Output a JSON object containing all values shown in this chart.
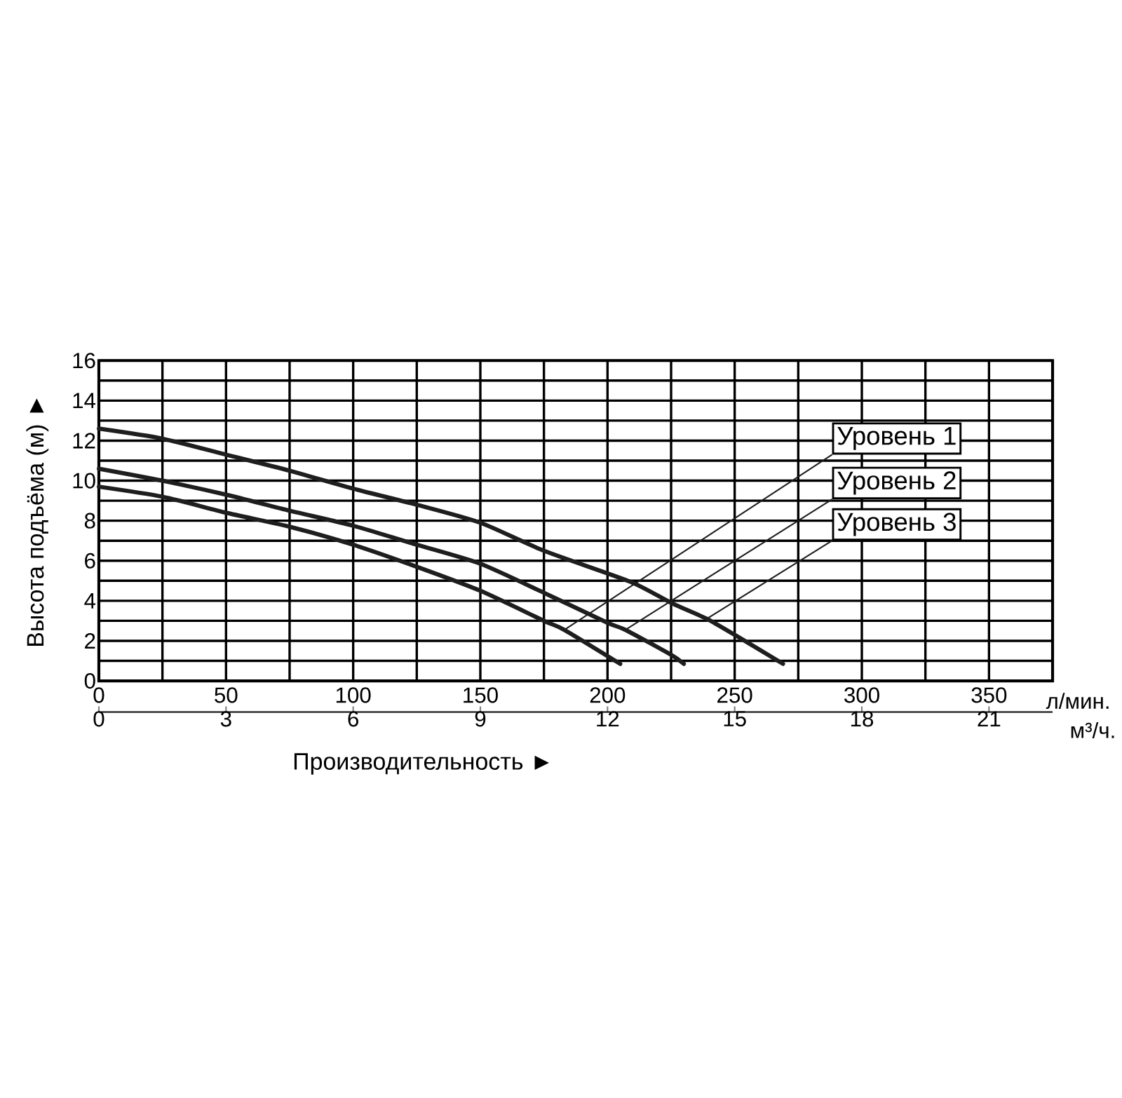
{
  "chart_data": {
    "type": "line",
    "xlabel": "Производительность ►",
    "ylabel": "Высота подъёма (м) ►",
    "xlim": [
      0,
      375
    ],
    "xticks": [
      0,
      {
        "value": 25,
        "label": null
      },
      50,
      {
        "value": 75,
        "label": null
      },
      100,
      {
        "value": 125,
        "label": null
      },
      150,
      {
        "value": 175,
        "label": null
      },
      200,
      {
        "value": 225,
        "label": null
      },
      250,
      {
        "value": 275,
        "label": null
      },
      300,
      {
        "value": 325,
        "label": null
      },
      350
    ],
    "ylim": [
      0,
      16
    ],
    "yticks": [
      0,
      {
        "value": 1,
        "label": null
      },
      2,
      {
        "value": 3,
        "label": null
      },
      4,
      {
        "value": 5,
        "label": null
      },
      6,
      {
        "value": 7,
        "label": null
      },
      8,
      {
        "value": 9,
        "label": null
      },
      10,
      {
        "value": 11,
        "label": null
      },
      12,
      {
        "value": 13,
        "label": null
      },
      14,
      {
        "value": 15,
        "label": null
      },
      16
    ],
    "x2lim": [
      0,
      22.5
    ],
    "x2ticks": [
      0,
      3,
      6,
      9,
      12,
      15,
      18,
      21
    ],
    "grid": true,
    "line_style": "solid",
    "series": [
      {
        "name": "Уровень 1",
        "color": "#1e1e1e",
        "x": [
          0,
          25,
          50,
          75,
          100,
          125,
          150,
          175,
          183,
          205
        ],
        "values": [
          9.7,
          9.2,
          8.4,
          7.7,
          6.8,
          5.7,
          4.5,
          3.0,
          2.55,
          0.85
        ]
      },
      {
        "name": "Уровень 2",
        "color": "#1e1e1e",
        "x": [
          0,
          25,
          50,
          75,
          100,
          125,
          150,
          175,
          200,
          207,
          225,
          230
        ],
        "values": [
          10.6,
          10.0,
          9.3,
          8.5,
          7.75,
          6.8,
          5.85,
          4.4,
          2.9,
          2.55,
          1.3,
          0.85
        ]
      },
      {
        "name": "Уровень 3",
        "color": "#1e1e1e",
        "x": [
          0,
          25,
          50,
          75,
          100,
          125,
          150,
          175,
          209,
          225,
          239,
          250,
          269
        ],
        "values": [
          12.6,
          12.1,
          11.3,
          10.5,
          9.6,
          8.8,
          7.9,
          6.5,
          4.95,
          3.9,
          3.1,
          2.3,
          0.85
        ]
      }
    ],
    "annotations": [
      "л/мин.",
      "м³/ч."
    ]
  }
}
